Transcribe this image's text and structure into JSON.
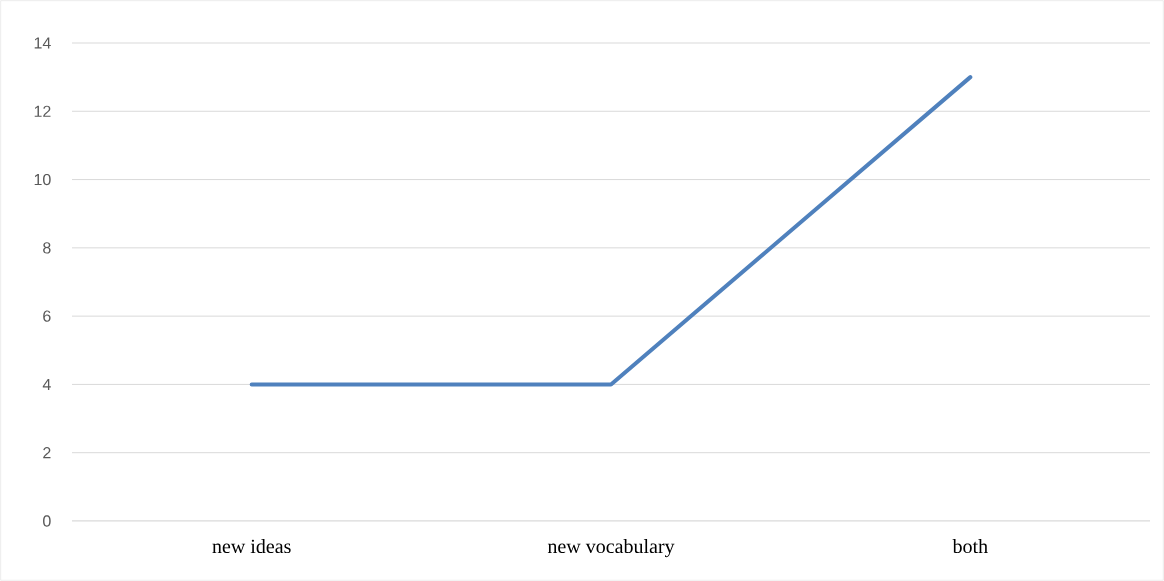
{
  "chart_data": {
    "type": "line",
    "categories": [
      "new ideas",
      "new vocabulary",
      "both"
    ],
    "series": [
      {
        "color": "#4f81bd",
        "values": [
          4,
          4,
          13
        ]
      }
    ],
    "ylim": [
      0,
      14
    ],
    "yticks": [
      0,
      2,
      4,
      6,
      8,
      10,
      12,
      14
    ],
    "grid": "y",
    "marker": "none",
    "line_style": "solid"
  }
}
